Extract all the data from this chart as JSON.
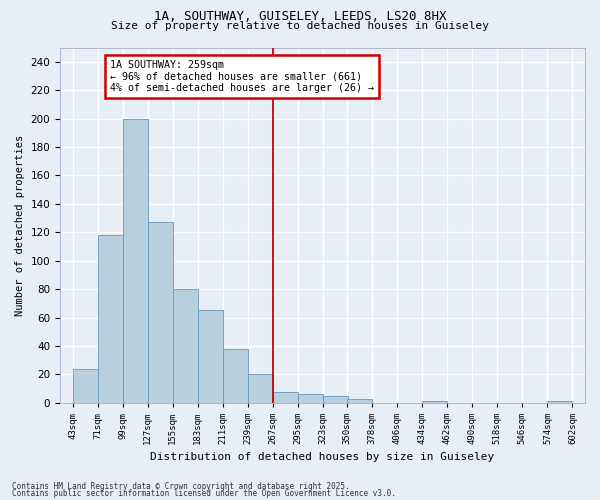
{
  "title1": "1A, SOUTHWAY, GUISELEY, LEEDS, LS20 8HX",
  "title2": "Size of property relative to detached houses in Guiseley",
  "xlabel": "Distribution of detached houses by size in Guiseley",
  "ylabel": "Number of detached properties",
  "bar_values": [
    24,
    118,
    200,
    127,
    80,
    65,
    38,
    20,
    8,
    6,
    5,
    3,
    0,
    0,
    1,
    0,
    0,
    0,
    0,
    1
  ],
  "bin_edges": [
    43,
    71,
    99,
    127,
    155,
    183,
    211,
    239,
    267,
    295,
    323,
    350,
    378,
    406,
    434,
    462,
    490,
    518,
    546,
    574,
    602
  ],
  "tick_labels": [
    "43sqm",
    "71sqm",
    "99sqm",
    "127sqm",
    "155sqm",
    "183sqm",
    "211sqm",
    "239sqm",
    "267sqm",
    "295sqm",
    "323sqm",
    "350sqm",
    "378sqm",
    "406sqm",
    "434sqm",
    "462sqm",
    "490sqm",
    "518sqm",
    "546sqm",
    "574sqm",
    "602sqm"
  ],
  "bar_color": "#b8cfe0",
  "bar_edgecolor": "#6699bb",
  "vline_x_index": 8,
  "vline_color": "#cc0000",
  "annotation_title": "1A SOUTHWAY: 259sqm",
  "annotation_line1": "← 96% of detached houses are smaller (661)",
  "annotation_line2": "4% of semi-detached houses are larger (26) →",
  "annotation_box_edgecolor": "#cc0000",
  "annotation_box_facecolor": "#ffffff",
  "ylim": [
    0,
    250
  ],
  "yticks": [
    0,
    20,
    40,
    60,
    80,
    100,
    120,
    140,
    160,
    180,
    200,
    220,
    240
  ],
  "bg_color": "#e8eef5",
  "grid_color": "#ffffff",
  "footer1": "Contains HM Land Registry data © Crown copyright and database right 2025.",
  "footer2": "Contains public sector information licensed under the Open Government Licence v3.0."
}
